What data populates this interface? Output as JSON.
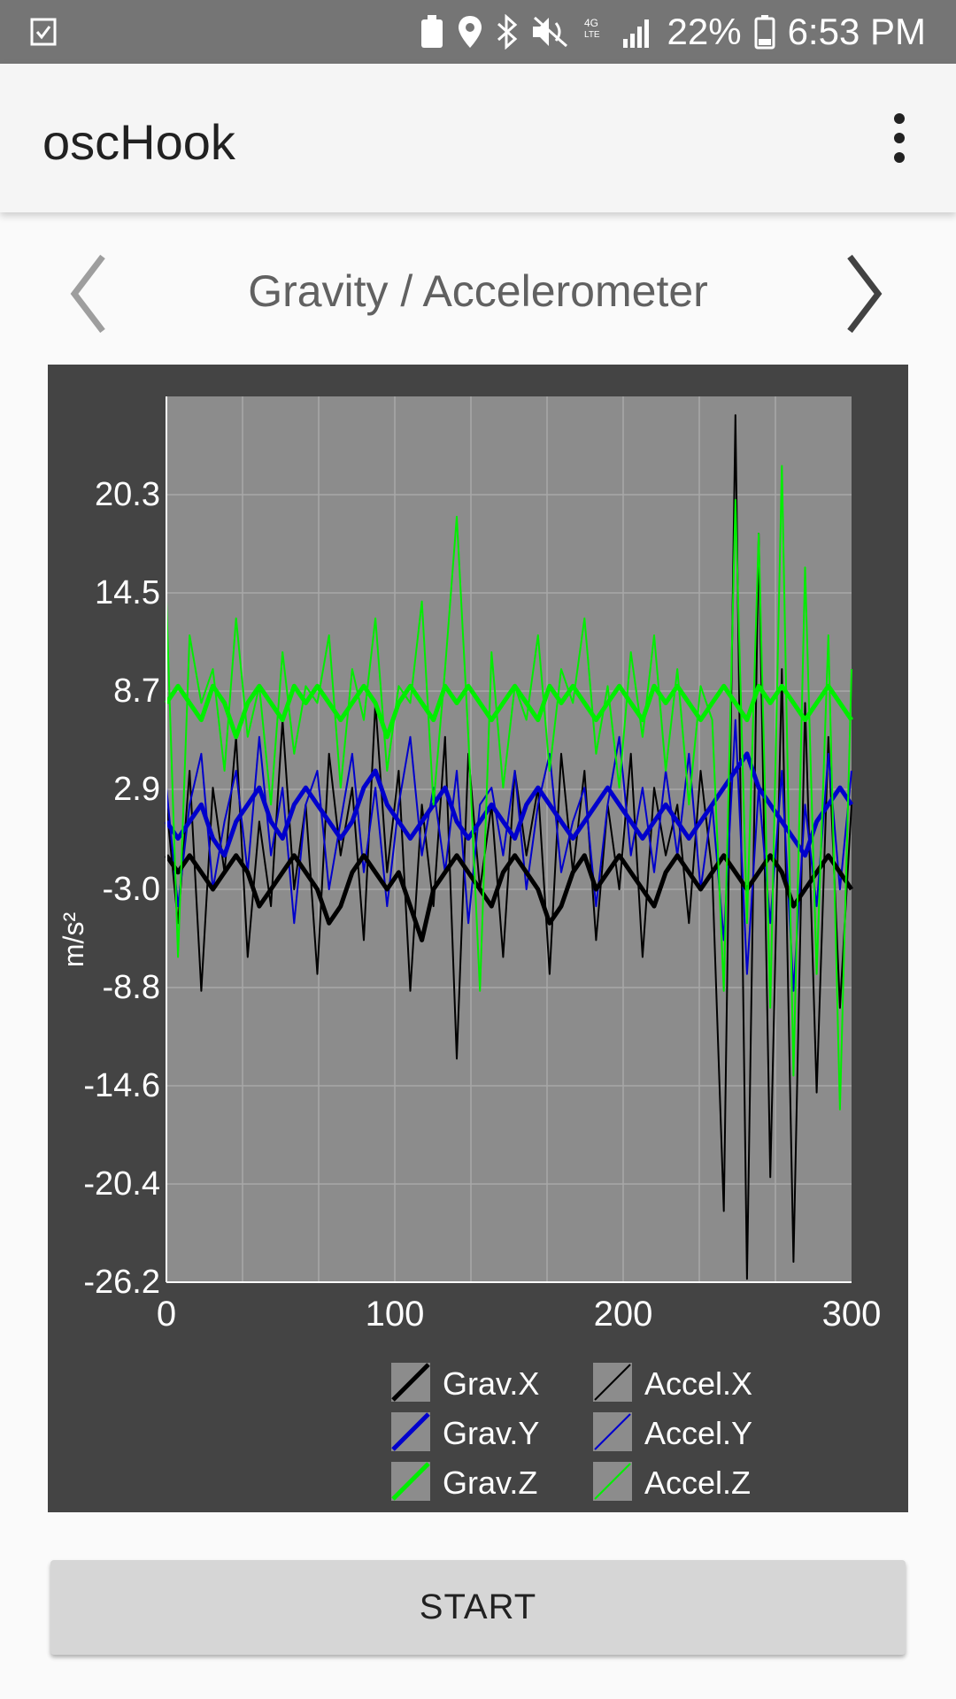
{
  "status_bar": {
    "battery": "22%",
    "time": "6:53 PM"
  },
  "app_bar": {
    "title": "oscHook"
  },
  "pager": {
    "title": "Gravity / Accelerometer"
  },
  "chart_data": {
    "type": "line",
    "ylabel": "m/s²",
    "xlim": [
      0,
      300
    ],
    "ylim": [
      -26.2,
      26.1
    ],
    "x_ticks": [
      "0",
      "100",
      "200",
      "300"
    ],
    "y_ticks": [
      "20.3",
      "14.5",
      "8.7",
      "2.9",
      "-3.0",
      "-8.8",
      "-14.6",
      "-20.4",
      "-26.2"
    ],
    "grid": true,
    "legend_position": "bottom",
    "series": [
      {
        "name": "Grav.X",
        "color": "#000000",
        "width": 5,
        "values": [
          -1,
          -2,
          -1,
          -2,
          -3,
          -2,
          -1,
          -2,
          -4,
          -3,
          -2,
          -1,
          -2,
          -3,
          -5,
          -4,
          -2,
          -1,
          -2,
          -3,
          -2,
          -4,
          -6,
          -3,
          -2,
          -1,
          -2,
          -3,
          -4,
          -2,
          -1,
          -2,
          -3,
          -5,
          -4,
          -2,
          -1,
          -3,
          -2,
          -1,
          -2,
          -3,
          -4,
          -2,
          -1,
          -2,
          -3,
          -2,
          -1,
          -2,
          -3,
          -2,
          -1,
          -2,
          -4,
          -3,
          -2,
          -1,
          -2,
          -3
        ]
      },
      {
        "name": "Grav.Y",
        "color": "#0000cc",
        "width": 5,
        "values": [
          1,
          0,
          1,
          2,
          0,
          -1,
          1,
          2,
          3,
          1,
          0,
          2,
          3,
          2,
          1,
          0,
          1,
          3,
          4,
          2,
          1,
          0,
          1,
          2,
          3,
          1,
          0,
          1,
          2,
          1,
          0,
          2,
          3,
          2,
          1,
          0,
          1,
          2,
          3,
          2,
          1,
          0,
          1,
          2,
          1,
          0,
          1,
          2,
          3,
          4,
          5,
          3,
          2,
          1,
          0,
          -1,
          1,
          2,
          3,
          2
        ]
      },
      {
        "name": "Grav.Z",
        "color": "#00ee00",
        "width": 5,
        "values": [
          8,
          9,
          8,
          7,
          9,
          8,
          6,
          8,
          9,
          8,
          7,
          9,
          8,
          9,
          8,
          7,
          8,
          9,
          8,
          6,
          8,
          9,
          8,
          7,
          9,
          8,
          9,
          8,
          7,
          8,
          9,
          8,
          7,
          9,
          8,
          9,
          8,
          7,
          8,
          9,
          8,
          7,
          9,
          8,
          9,
          8,
          7,
          8,
          9,
          8,
          7,
          9,
          8,
          9,
          8,
          7,
          8,
          9,
          8,
          7
        ]
      },
      {
        "name": "Accel.X",
        "color": "#000000",
        "width": 2,
        "values": [
          2,
          -5,
          4,
          -9,
          3,
          -2,
          6,
          -7,
          1,
          -4,
          7,
          -3,
          2,
          -8,
          5,
          -1,
          3,
          -6,
          8,
          -2,
          4,
          -9,
          2,
          -4,
          6,
          -13,
          5,
          -3,
          2,
          -7,
          4,
          -1,
          3,
          -8,
          5,
          -2,
          4,
          -6,
          2,
          -3,
          5,
          -7,
          3,
          -1,
          2,
          -5,
          4,
          -2,
          -22,
          25,
          -26,
          18,
          -20,
          10,
          -25,
          8,
          -15,
          6,
          -10,
          2
        ]
      },
      {
        "name": "Accel.Y",
        "color": "#0000cc",
        "width": 2,
        "values": [
          3,
          -4,
          2,
          5,
          -3,
          1,
          4,
          -2,
          6,
          -1,
          3,
          -5,
          2,
          4,
          -3,
          1,
          5,
          -2,
          3,
          -4,
          2,
          6,
          -1,
          3,
          -2,
          4,
          -5,
          2,
          3,
          -1,
          4,
          -3,
          2,
          5,
          -2,
          1,
          3,
          -4,
          2,
          6,
          -1,
          3,
          -2,
          4,
          -1,
          5,
          -3,
          2,
          -6,
          7,
          -8,
          3,
          -5,
          4,
          -9,
          2,
          -4,
          5,
          -3,
          4
        ]
      },
      {
        "name": "Accel.Z",
        "color": "#00ee00",
        "width": 2,
        "values": [
          14,
          -7,
          12,
          8,
          10,
          4,
          13,
          6,
          9,
          2,
          11,
          5,
          9,
          8,
          12,
          3,
          10,
          7,
          13,
          4,
          9,
          8,
          14,
          2,
          10,
          19,
          6,
          -9,
          11,
          3,
          9,
          7,
          12,
          4,
          10,
          8,
          13,
          5,
          9,
          3,
          11,
          6,
          12,
          4,
          10,
          2,
          9,
          7,
          -9,
          20,
          -5,
          18,
          -10,
          22,
          -14,
          16,
          -8,
          12,
          -16,
          10
        ]
      }
    ]
  }
}
